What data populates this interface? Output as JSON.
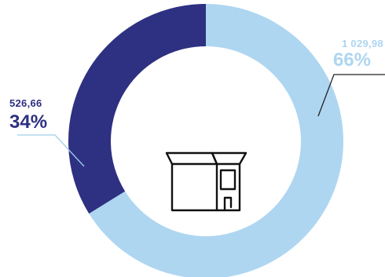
{
  "chart_data": {
    "type": "pie",
    "variant": "donut",
    "title": "",
    "categories": [
      "",
      ""
    ],
    "values": [
      1029.98,
      526.66
    ],
    "value_labels": [
      "1 029,98",
      "526,66"
    ],
    "percent_labels": [
      "66%",
      "34%"
    ],
    "colors": [
      "#aed6f1",
      "#2e3081"
    ],
    "center_icon": "box-icon",
    "legend": "none"
  }
}
